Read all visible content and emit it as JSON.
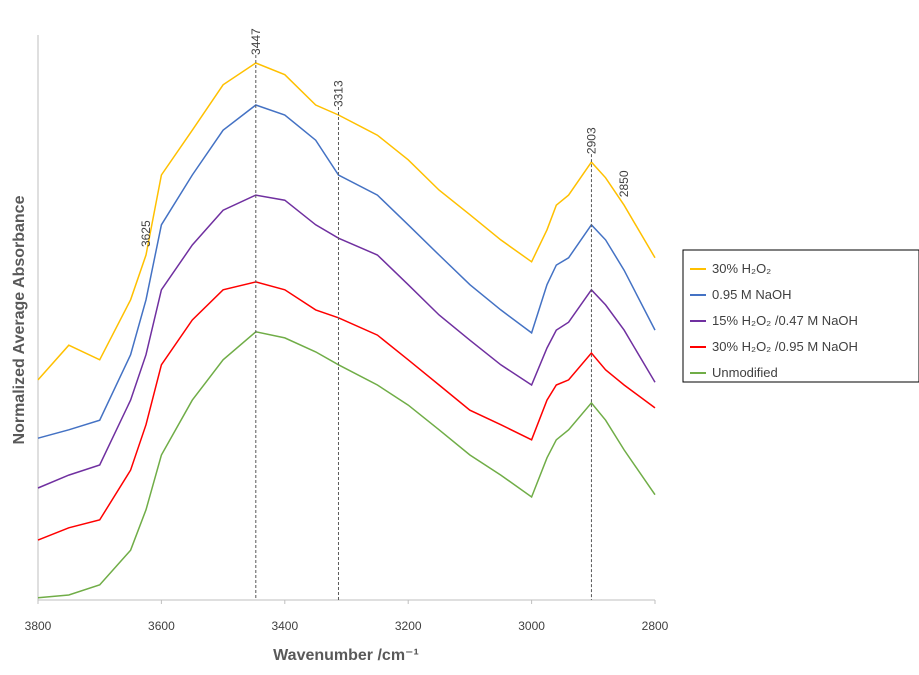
{
  "chart_data": {
    "type": "line",
    "xlabel": "Wavenumber /cm⁻¹",
    "ylabel": "Normalized Average Absorbance",
    "x": [
      3800,
      3750,
      3700,
      3650,
      3625,
      3600,
      3550,
      3500,
      3447,
      3400,
      3350,
      3313,
      3250,
      3200,
      3150,
      3100,
      3050,
      3000,
      2975,
      2960,
      2940,
      2903,
      2880,
      2850,
      2800
    ],
    "series": [
      {
        "name": "30% H₂O₂",
        "color": "#ffc000",
        "values": [
          39.3,
          45.5,
          42.9,
          53.6,
          61.6,
          75.9,
          83.9,
          92.0,
          95.9,
          93.8,
          88.4,
          86.6,
          83.0,
          78.6,
          73.2,
          68.8,
          64.3,
          60.4,
          66.1,
          70.5,
          72.3,
          78.2,
          75.4,
          70.5,
          61.1
        ]
      },
      {
        "name": "0.95 M NaOH",
        "color": "#4472c4",
        "values": [
          28.9,
          30.4,
          32.1,
          43.8,
          53.6,
          67.0,
          75.9,
          83.9,
          88.4,
          86.6,
          82.1,
          75.9,
          72.3,
          67.0,
          61.6,
          56.3,
          51.8,
          47.7,
          56.3,
          59.8,
          61.1,
          67.0,
          64.3,
          58.9,
          48.2
        ]
      },
      {
        "name": "15% H₂O₂ /0.47 M NaOH",
        "color": "#7030a0",
        "values": [
          20.0,
          22.3,
          24.1,
          35.7,
          43.8,
          55.4,
          63.4,
          69.6,
          72.3,
          71.4,
          67.0,
          64.6,
          61.6,
          56.3,
          50.9,
          46.4,
          42.0,
          38.4,
          45.0,
          48.2,
          49.6,
          55.4,
          52.7,
          48.2,
          38.9
        ]
      },
      {
        "name": "30% H₂O₂ /0.95 M NaOH",
        "color": "#ff0000",
        "values": [
          10.7,
          12.9,
          14.3,
          23.2,
          31.3,
          42.0,
          50.0,
          55.4,
          56.8,
          55.4,
          51.8,
          50.4,
          47.3,
          42.9,
          38.4,
          33.9,
          31.3,
          28.6,
          35.7,
          38.4,
          39.3,
          44.1,
          41.1,
          38.4,
          34.3
        ]
      },
      {
        "name": "Unmodified",
        "color": "#70ad47",
        "values": [
          0.4,
          0.9,
          2.7,
          8.9,
          16.1,
          25.9,
          35.7,
          42.9,
          47.9,
          46.8,
          44.3,
          42.0,
          38.4,
          34.8,
          30.4,
          25.9,
          22.3,
          18.4,
          25.4,
          28.6,
          30.4,
          35.2,
          32.1,
          26.8,
          18.8
        ]
      }
    ],
    "xlim": [
      3800,
      2800
    ],
    "xticks": [
      3800,
      3600,
      3400,
      3200,
      3000,
      2800
    ],
    "ylim": [
      0,
      100
    ],
    "annotations": [
      {
        "x": 3625,
        "line": false
      },
      {
        "x": 3447,
        "line": true
      },
      {
        "x": 3313,
        "line": true
      },
      {
        "x": 2903,
        "line": true
      },
      {
        "x": 2850,
        "line": false
      }
    ],
    "legend": "right"
  }
}
